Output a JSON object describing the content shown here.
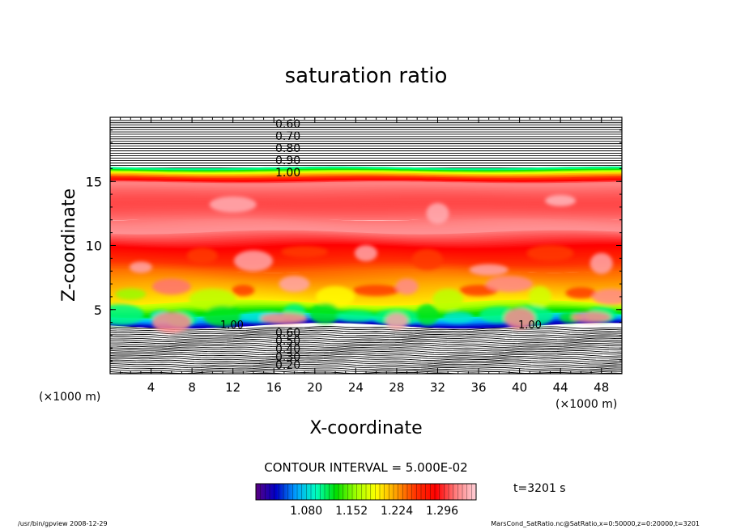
{
  "chart_data": {
    "type": "heatmap",
    "title": "saturation ratio",
    "xlabel": "X-coordinate",
    "ylabel": "Z-coordinate",
    "x_unit": "(×1000 m)",
    "y_unit": "(×1000 m)",
    "xlim": [
      0,
      50
    ],
    "ylim": [
      0,
      20
    ],
    "x_ticks": [
      4,
      8,
      12,
      16,
      20,
      24,
      28,
      32,
      36,
      40,
      44,
      48
    ],
    "y_ticks": [
      5,
      10,
      15
    ],
    "contour_interval": "CONTOUR INTERVAL = 5.000E-02",
    "upper_contour_labels": [
      "0.60",
      "0.70",
      "0.80",
      "0.90",
      "1.00"
    ],
    "lower_contour_labels": [
      "0.60",
      "0.50",
      "0.40",
      "0.30",
      "0.20"
    ],
    "inline_labels": [
      "1.00",
      "1.00"
    ],
    "colorbar_range": [
      1.0,
      1.35
    ],
    "colorbar_labels": [
      "1.080",
      "1.152",
      "1.224",
      "1.296"
    ],
    "time_label": "t=3201 s",
    "footer_left": "/usr/bin/gpview   2008-12-29",
    "footer_right": "MarsCond_SatRatio.nc@SatRatio,x=0:50000,z=0:20000,t=3201",
    "grid": false,
    "colormap": [
      "#5a0080",
      "#0000c8",
      "#00a0ff",
      "#00ffc0",
      "#00e000",
      "#a0ff00",
      "#ffff00",
      "#ffa000",
      "#ff3000",
      "#ff0000",
      "#ff8080",
      "#ffd0d8"
    ]
  }
}
